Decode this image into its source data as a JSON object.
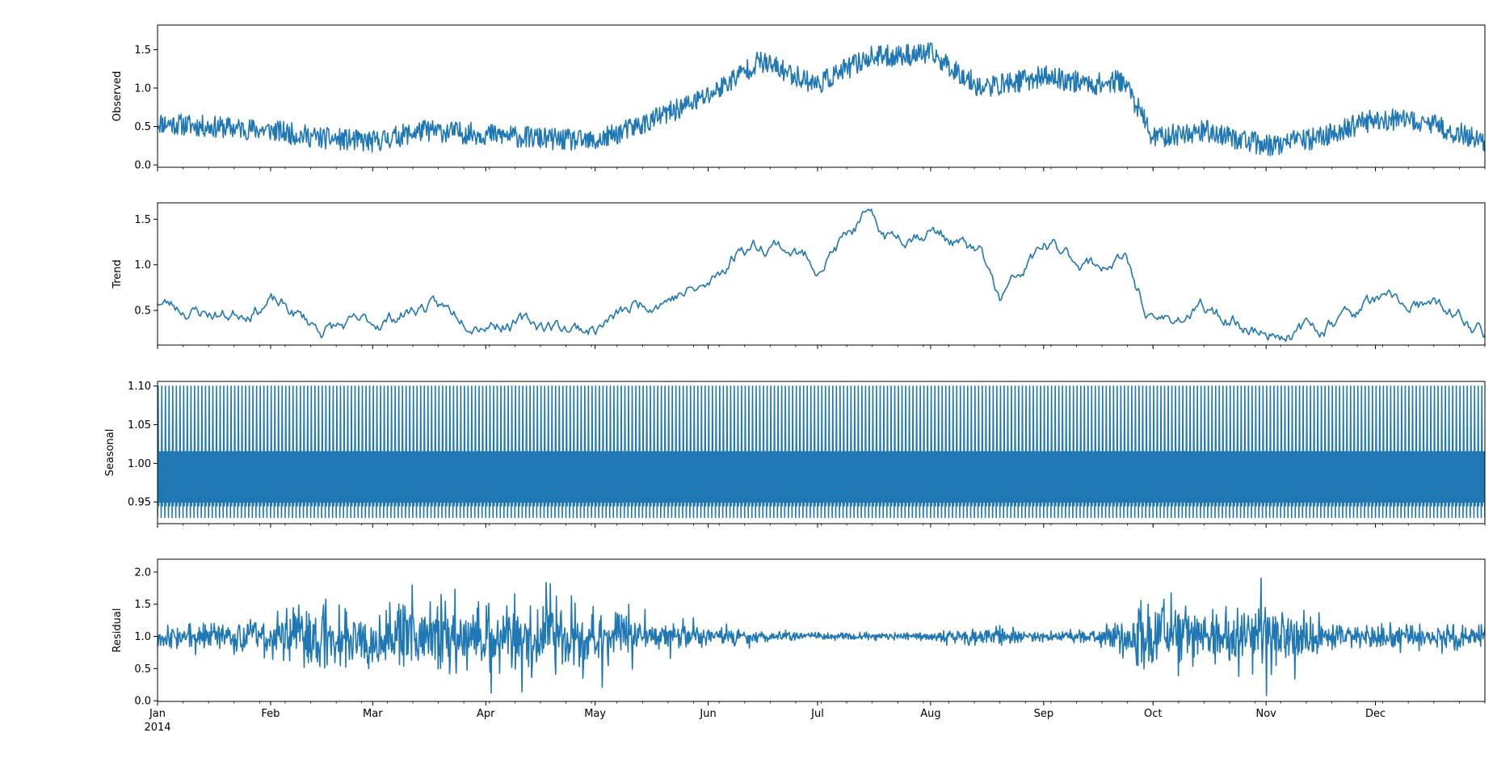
{
  "chart_data": [
    {
      "type": "line",
      "ylabel": "Observed",
      "ylim": [
        -0.03,
        1.82
      ],
      "yticks": [
        0.0,
        0.5,
        1.0,
        1.5
      ],
      "yticklabels": [
        "0.0",
        "0.5",
        "1.0",
        "1.5"
      ],
      "x": [
        "2014-01-01",
        "2014-01-15",
        "2014-02-01",
        "2014-02-15",
        "2014-03-01",
        "2014-03-15",
        "2014-04-01",
        "2014-04-15",
        "2014-05-01",
        "2014-05-15",
        "2014-06-01",
        "2014-06-15",
        "2014-07-01",
        "2014-07-15",
        "2014-08-01",
        "2014-08-15",
        "2014-09-01",
        "2014-09-15",
        "2014-09-23",
        "2014-10-01",
        "2014-10-15",
        "2014-11-01",
        "2014-11-15",
        "2014-12-01",
        "2014-12-15",
        "2014-12-31"
      ],
      "values": [
        0.55,
        0.5,
        0.45,
        0.35,
        0.3,
        0.45,
        0.4,
        0.35,
        0.3,
        0.55,
        0.9,
        1.35,
        1.05,
        1.4,
        1.45,
        1.0,
        1.15,
        1.05,
        1.1,
        0.35,
        0.45,
        0.25,
        0.35,
        0.6,
        0.55,
        0.3
      ],
      "noise": 0.22,
      "seed": 11
    },
    {
      "type": "line",
      "ylabel": "Trend",
      "ylim": [
        0.12,
        1.68
      ],
      "yticks": [
        0.5,
        1.0,
        1.5
      ],
      "yticklabels": [
        "0.5",
        "1.0",
        "1.5"
      ],
      "x": [
        "2014-01-01",
        "2014-01-10",
        "2014-01-20",
        "2014-02-01",
        "2014-02-15",
        "2014-03-01",
        "2014-03-15",
        "2014-04-01",
        "2014-04-15",
        "2014-05-01",
        "2014-05-15",
        "2014-06-01",
        "2014-06-10",
        "2014-06-20",
        "2014-07-01",
        "2014-07-14",
        "2014-07-20",
        "2014-08-01",
        "2014-08-15",
        "2014-08-20",
        "2014-09-01",
        "2014-09-15",
        "2014-09-23",
        "2014-10-01",
        "2014-10-15",
        "2014-11-01",
        "2014-11-15",
        "2014-12-01",
        "2014-12-20",
        "2014-12-31"
      ],
      "values": [
        0.6,
        0.5,
        0.45,
        0.6,
        0.3,
        0.35,
        0.55,
        0.4,
        0.35,
        0.3,
        0.6,
        0.75,
        1.2,
        1.25,
        1.0,
        1.5,
        1.3,
        1.4,
        1.1,
        0.6,
        1.2,
        1.0,
        1.05,
        0.35,
        0.5,
        0.25,
        0.3,
        0.6,
        0.5,
        0.25
      ],
      "noise": 0.1,
      "seed": 23
    },
    {
      "type": "line",
      "ylabel": "Seasonal",
      "ylim": [
        0.922,
        1.106
      ],
      "yticks": [
        0.95,
        1.0,
        1.05,
        1.1
      ],
      "yticklabels": [
        "0.95",
        "1.00",
        "1.05",
        "1.10"
      ],
      "period_hours": 24,
      "cycle": [
        0.93,
        1.1,
        0.945,
        1.015,
        0.95,
        1.015
      ],
      "x_start": "2014-01-01",
      "x_end": "2014-12-31"
    },
    {
      "type": "line",
      "ylabel": "Residual",
      "ylim": [
        -0.01,
        2.2
      ],
      "yticks": [
        0.0,
        0.5,
        1.0,
        1.5,
        2.0
      ],
      "yticklabels": [
        "0.0",
        "0.5",
        "1.0",
        "1.5",
        "2.0"
      ],
      "x": [
        "2014-01-01",
        "2014-01-20",
        "2014-02-01",
        "2014-02-15",
        "2014-03-01",
        "2014-03-15",
        "2014-04-01",
        "2014-04-15",
        "2014-05-01",
        "2014-05-15",
        "2014-06-01",
        "2014-06-15",
        "2014-07-01",
        "2014-07-15",
        "2014-08-01",
        "2014-08-15",
        "2014-09-01",
        "2014-09-15",
        "2014-10-01",
        "2014-10-15",
        "2014-11-01",
        "2014-11-15",
        "2014-12-01",
        "2014-12-15",
        "2014-12-31"
      ],
      "amplitude": [
        0.15,
        0.2,
        0.3,
        0.55,
        0.4,
        0.5,
        0.45,
        0.55,
        0.45,
        0.2,
        0.12,
        0.08,
        0.06,
        0.05,
        0.05,
        0.12,
        0.08,
        0.1,
        0.55,
        0.3,
        0.5,
        0.2,
        0.15,
        0.18,
        0.15
      ],
      "center": 1.0,
      "seed": 37
    }
  ],
  "x_axis": {
    "range": [
      "2014-01-01",
      "2014-12-31"
    ],
    "major_ticks": [
      "2014-01-01",
      "2014-02-01",
      "2014-03-01",
      "2014-04-01",
      "2014-05-01",
      "2014-06-01",
      "2014-07-01",
      "2014-08-01",
      "2014-09-01",
      "2014-10-01",
      "2014-11-01",
      "2014-12-01"
    ],
    "tick_labels": [
      "Jan",
      "Feb",
      "Mar",
      "Apr",
      "May",
      "Jun",
      "Jul",
      "Aug",
      "Sep",
      "Oct",
      "Nov",
      "Dec"
    ],
    "year_label": "2014",
    "minor_tick_every_days": 7
  },
  "colors": {
    "line": "#1f77b4",
    "axes": "#000000"
  }
}
